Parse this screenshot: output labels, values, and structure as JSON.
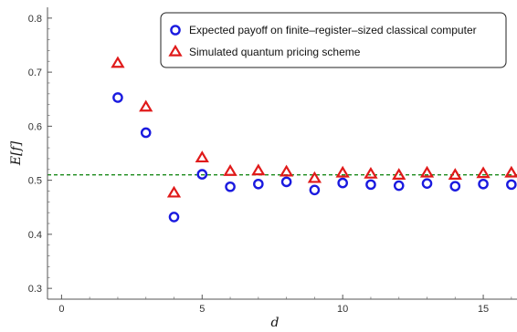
{
  "chart_data": {
    "type": "scatter",
    "title": "",
    "xlabel": "d",
    "ylabel": "E[f]",
    "xlim": [
      -0.5,
      16.2
    ],
    "ylim": [
      0.28,
      0.82
    ],
    "xticks": [
      0,
      5,
      10,
      15
    ],
    "yticks": [
      0.3,
      0.4,
      0.5,
      0.6,
      0.7,
      0.8
    ],
    "xtick_labels": [
      "0",
      "5",
      "10",
      "15"
    ],
    "ytick_labels": [
      "0.3",
      "0.4",
      "0.5",
      "0.6",
      "0.7",
      "0.8"
    ],
    "grid": false,
    "legend_position": "top-right",
    "reference_line": {
      "y": 0.51,
      "style": "dashed",
      "color": "#1a8a1a"
    },
    "series": [
      {
        "name": "Expected payoff on finite–register–sized classical computer",
        "marker": "circle",
        "color": "#1a1adf",
        "x": [
          2,
          3,
          4,
          5,
          6,
          7,
          8,
          9,
          10,
          11,
          12,
          13,
          14,
          15,
          16
        ],
        "y": [
          0.653,
          0.588,
          0.432,
          0.511,
          0.488,
          0.493,
          0.497,
          0.482,
          0.495,
          0.492,
          0.49,
          0.494,
          0.489,
          0.493,
          0.492
        ]
      },
      {
        "name": "Simulated quantum pricing scheme",
        "marker": "triangle",
        "color": "#e01a1a",
        "x": [
          2,
          3,
          4,
          5,
          6,
          7,
          8,
          9,
          10,
          11,
          12,
          13,
          14,
          15,
          16
        ],
        "y": [
          0.716,
          0.635,
          0.476,
          0.541,
          0.516,
          0.517,
          0.515,
          0.503,
          0.513,
          0.511,
          0.509,
          0.513,
          0.509,
          0.512,
          0.513
        ]
      }
    ]
  }
}
